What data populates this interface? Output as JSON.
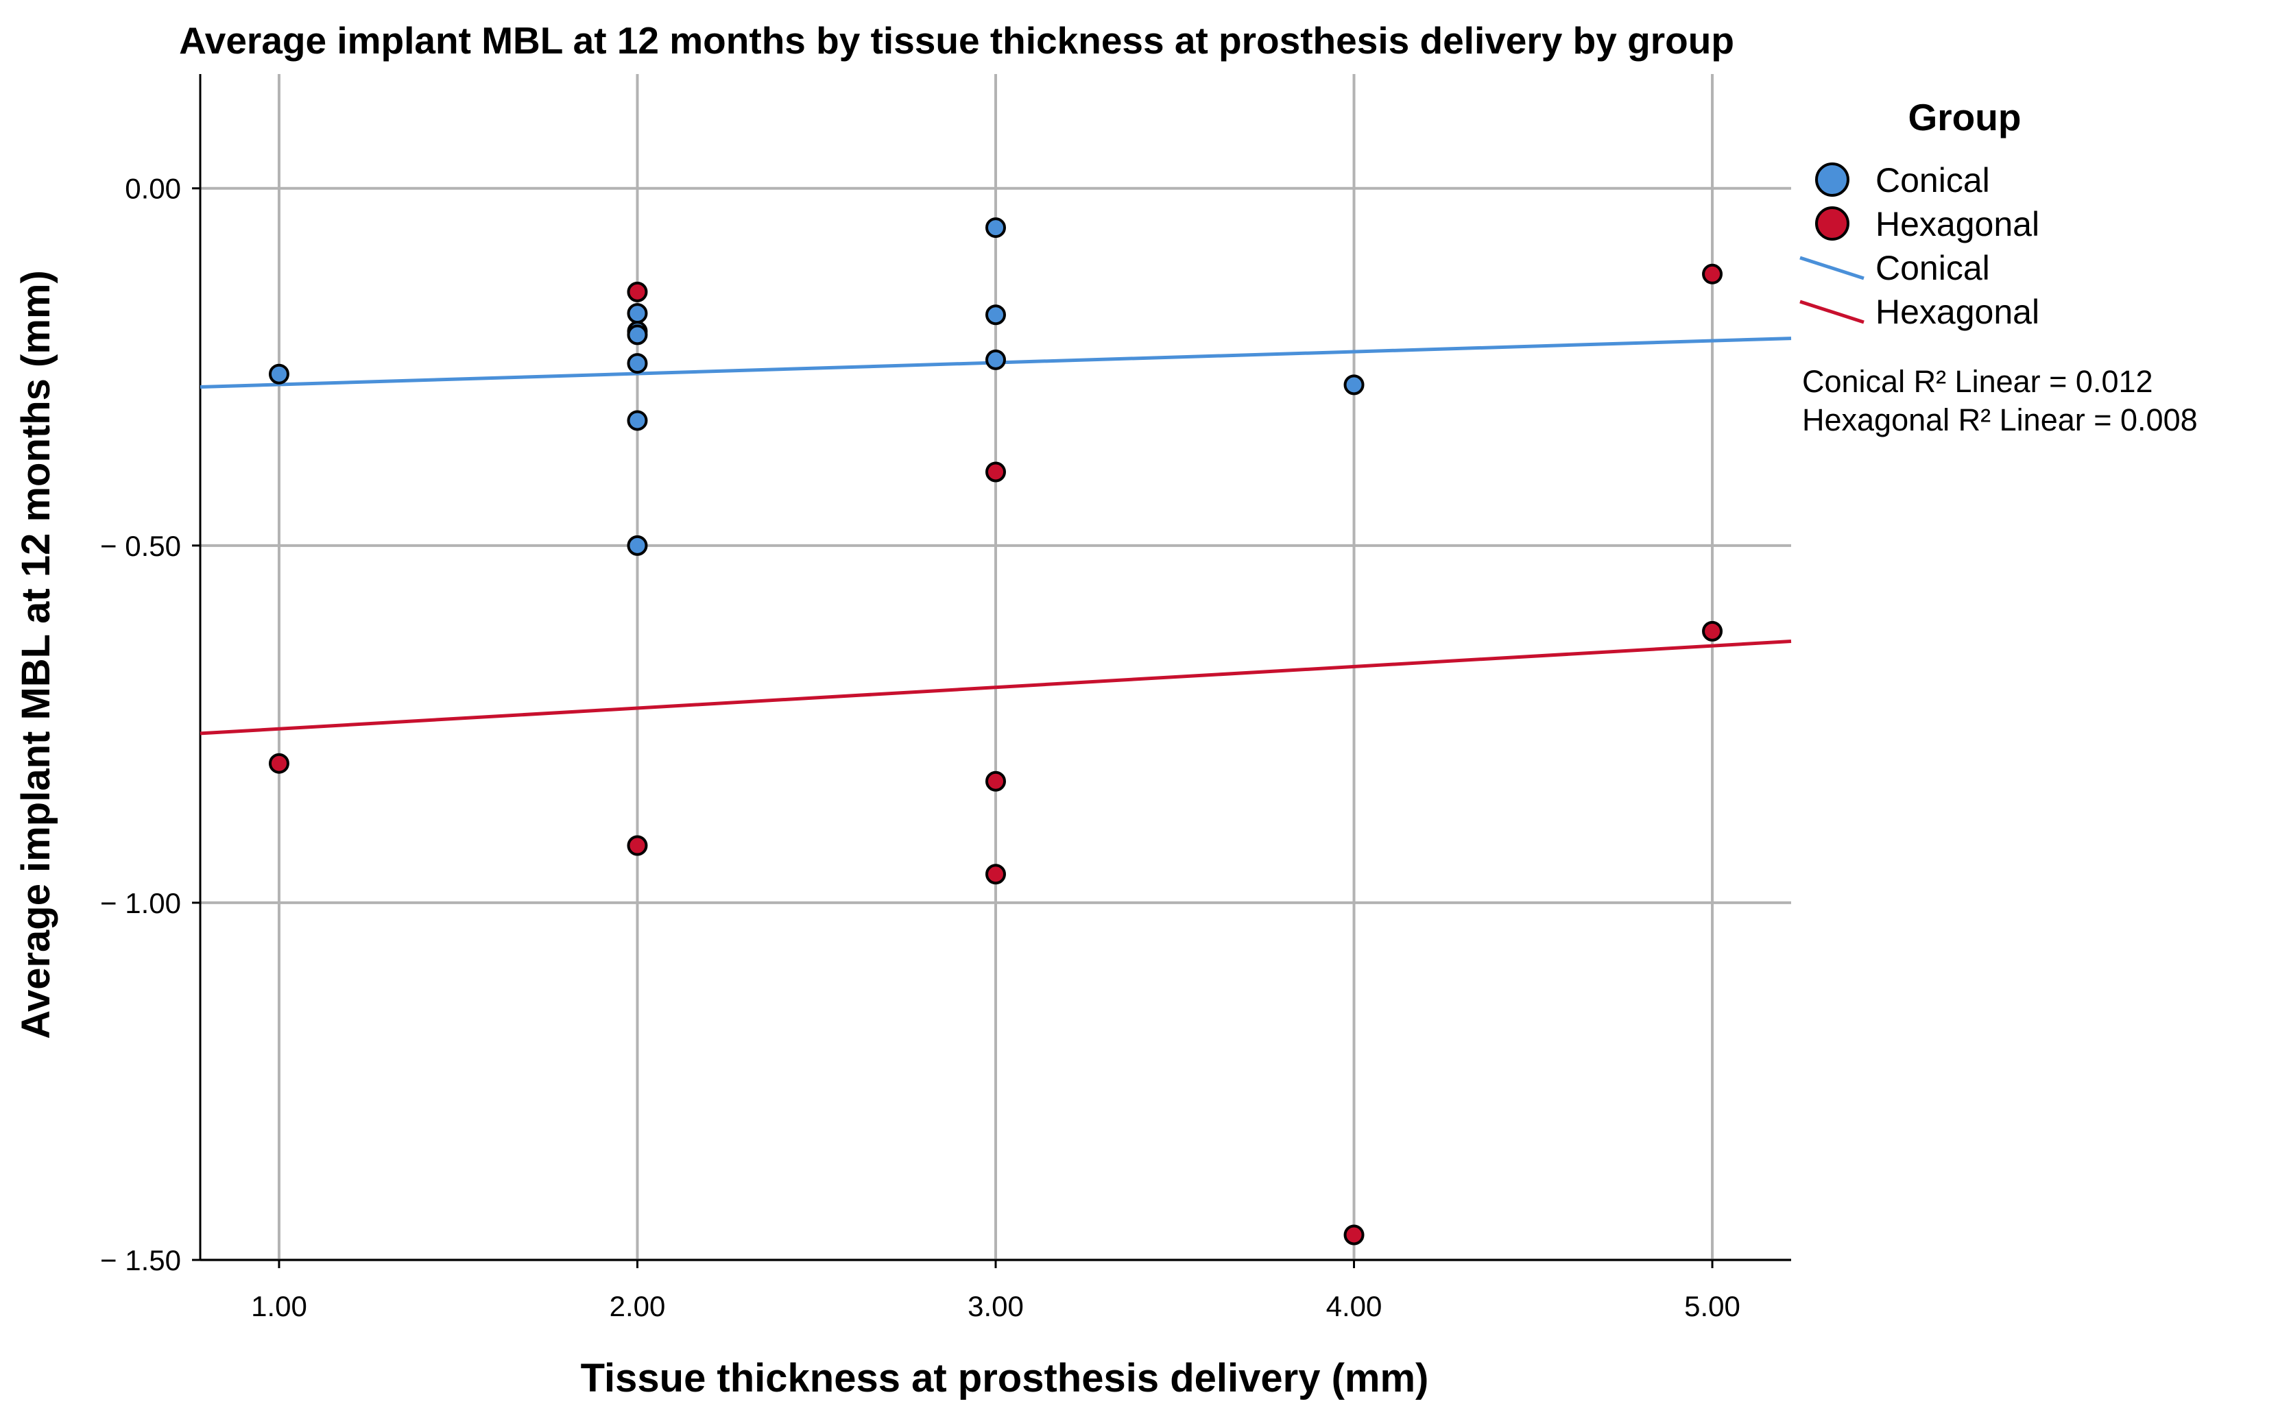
{
  "chart_data": {
    "type": "scatter",
    "title": "Average implant MBL at 12 months by tissue thickness at prosthesis delivery by group",
    "xlabel": "Tissue thickness at prosthesis delivery (mm)",
    "ylabel": "Average implant MBL at 12 months (mm)",
    "xlim": [
      0.78,
      5.22
    ],
    "ylim": [
      -1.5,
      0.16
    ],
    "x_ticks": [
      1,
      2,
      3,
      4,
      5
    ],
    "x_tick_labels": [
      "1.00",
      "2.00",
      "3.00",
      "4.00",
      "5.00"
    ],
    "y_ticks": [
      0,
      -0.5,
      -1,
      -1.5
    ],
    "y_tick_labels": [
      "0.00",
      "− 0.50",
      "− 1.00",
      "− 1.50"
    ],
    "grid": true,
    "legend_title": "Group",
    "legend_position": "right",
    "series": [
      {
        "name": "Conical",
        "color": "#4a90d9",
        "points": [
          {
            "x": 1,
            "y": -0.26
          },
          {
            "x": 2,
            "y": -0.175
          },
          {
            "x": 2,
            "y": -0.2
          },
          {
            "x": 2,
            "y": -0.205
          },
          {
            "x": 2,
            "y": -0.245
          },
          {
            "x": 2,
            "y": -0.325
          },
          {
            "x": 2,
            "y": -0.5
          },
          {
            "x": 3,
            "y": -0.055
          },
          {
            "x": 3,
            "y": -0.177
          },
          {
            "x": 3,
            "y": -0.24
          },
          {
            "x": 4,
            "y": -0.275
          }
        ]
      },
      {
        "name": "Hexagonal",
        "color": "#c8102e",
        "points": [
          {
            "x": 1,
            "y": -0.805
          },
          {
            "x": 2,
            "y": -0.145
          },
          {
            "x": 2,
            "y": -0.92
          },
          {
            "x": 3,
            "y": -0.397
          },
          {
            "x": 3,
            "y": -0.83
          },
          {
            "x": 3,
            "y": -0.96
          },
          {
            "x": 4,
            "y": -1.465
          },
          {
            "x": 5,
            "y": -0.12
          },
          {
            "x": 5,
            "y": -0.62
          }
        ]
      }
    ],
    "fit_lines": [
      {
        "name": "Conical",
        "color": "#4a90d9",
        "x": [
          0.78,
          5.22
        ],
        "y": [
          -0.278,
          -0.21
        ]
      },
      {
        "name": "Hexagonal",
        "color": "#c8102e",
        "x": [
          0.78,
          5.22
        ],
        "y": [
          -0.763,
          -0.634
        ]
      }
    ],
    "annotations": [
      "Conical R² Linear = 0.012",
      "Hexagonal R² Linear = 0.008"
    ]
  }
}
